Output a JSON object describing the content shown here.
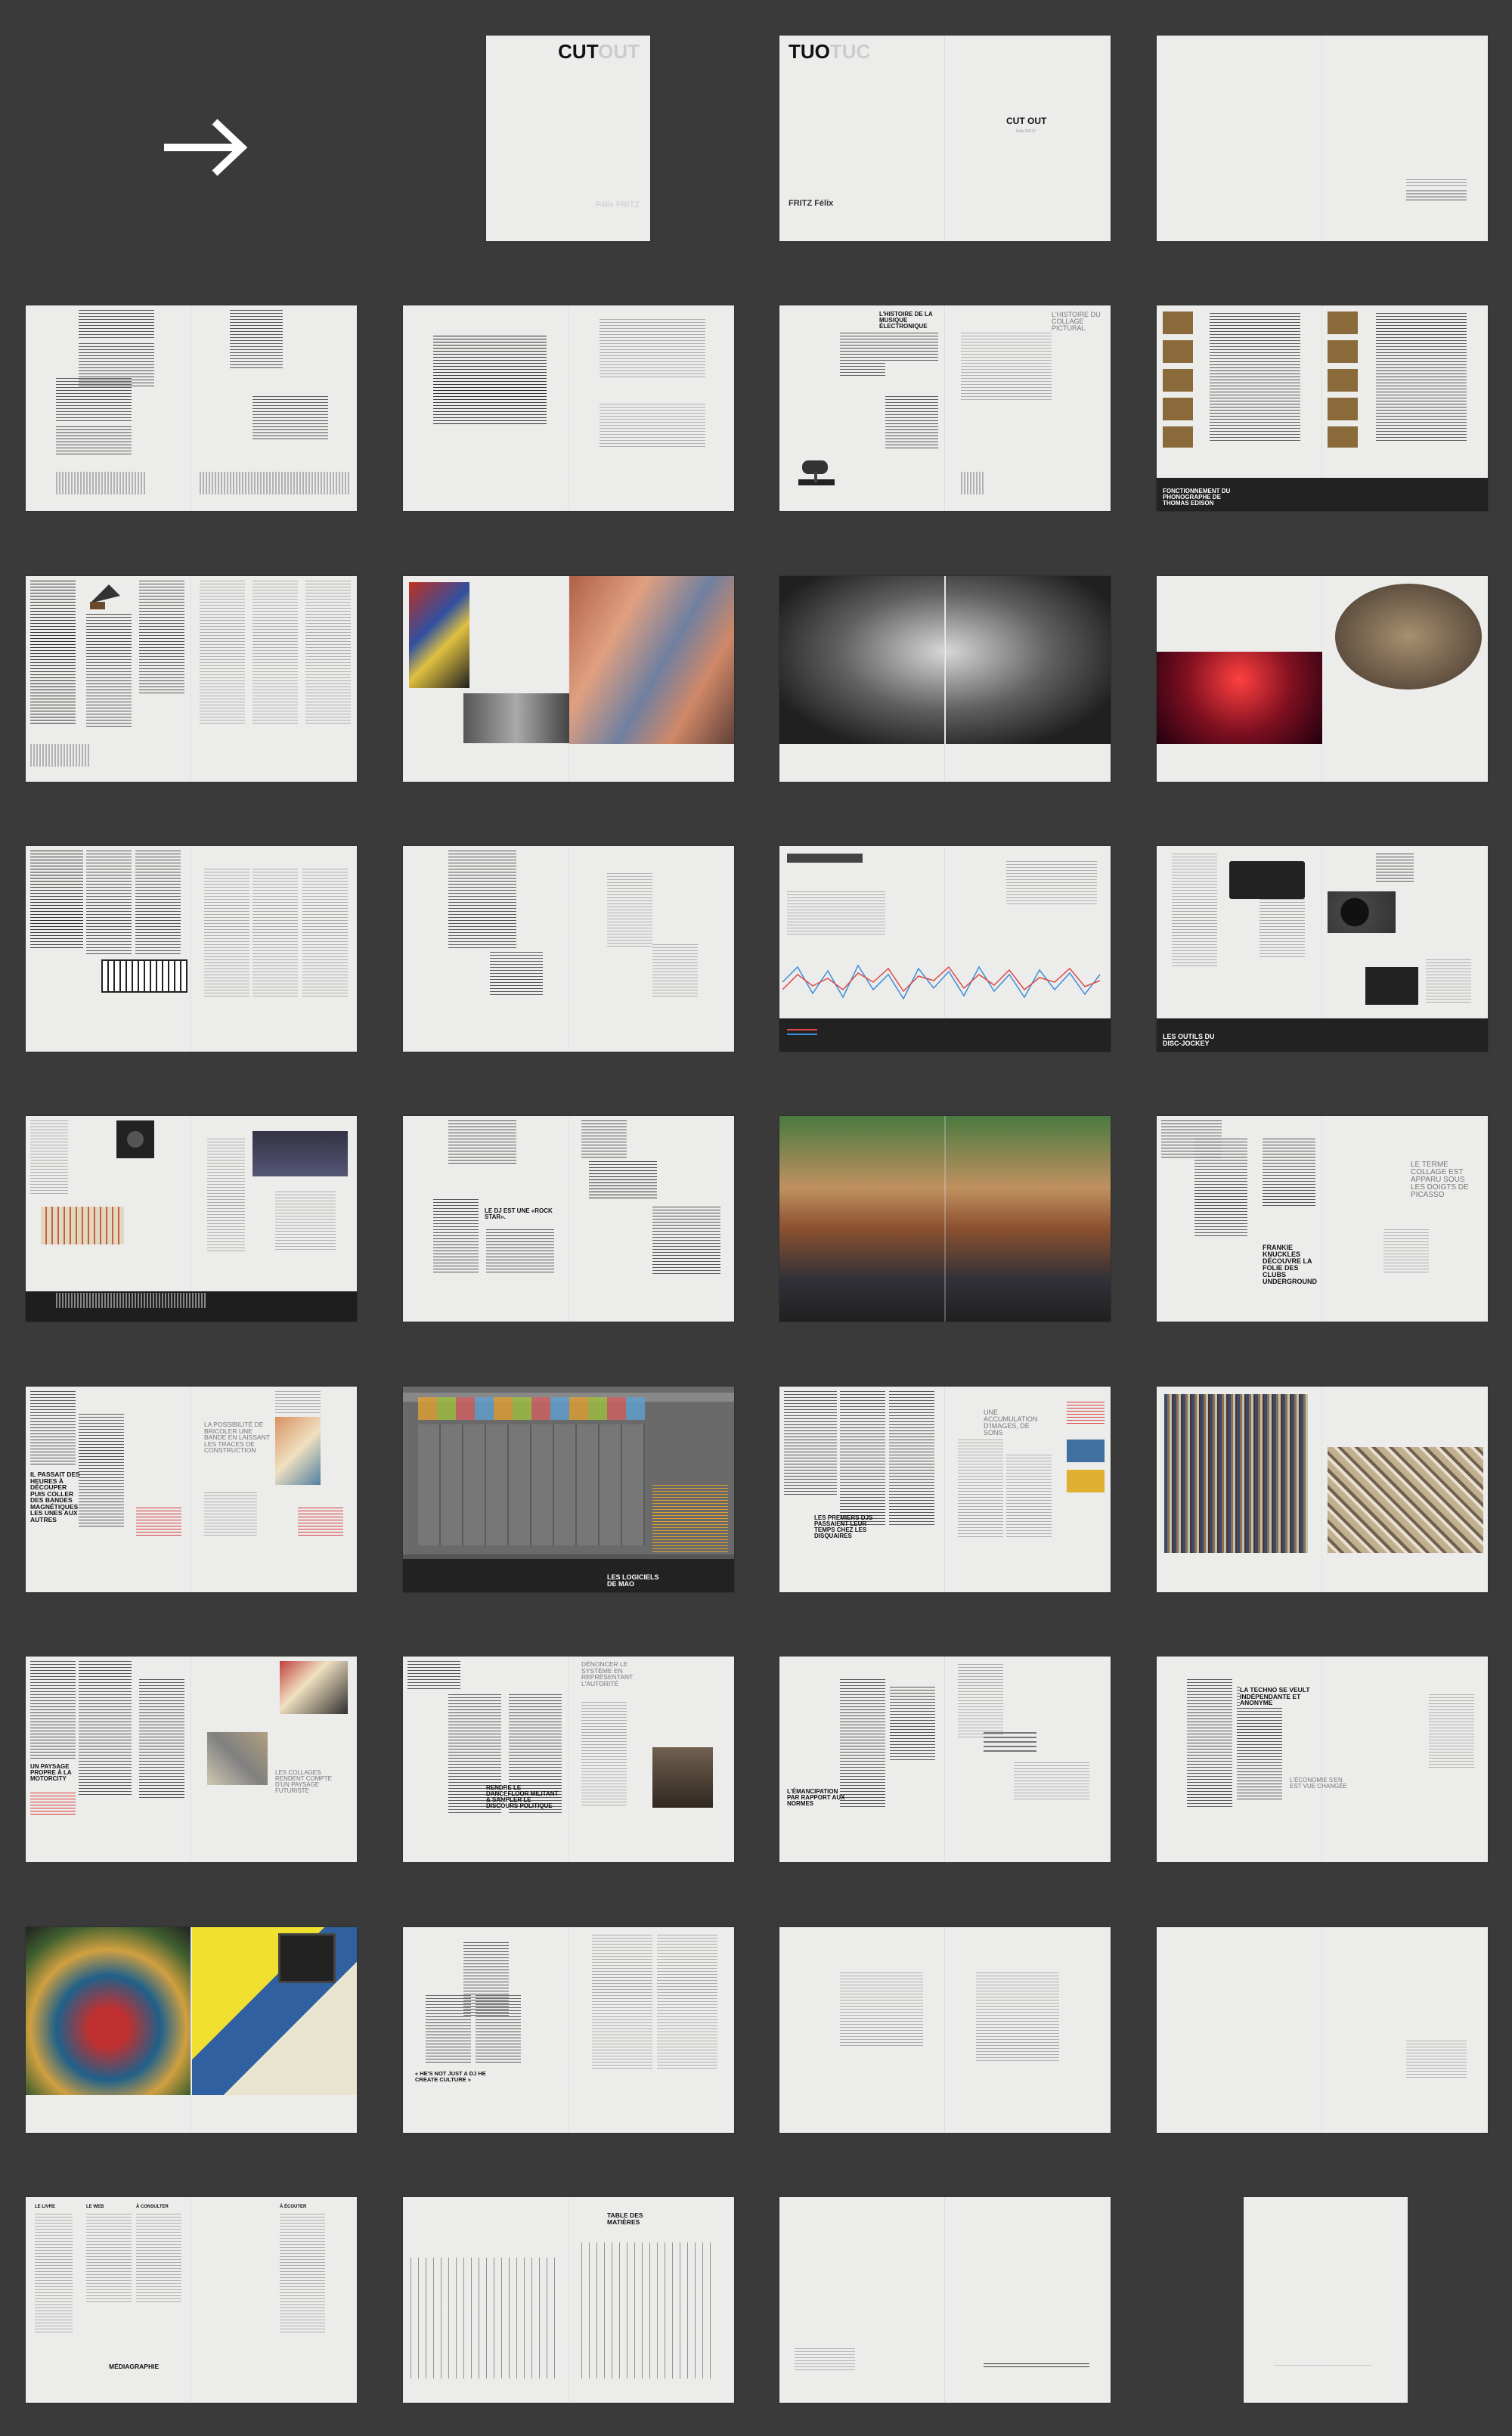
{
  "cover": {
    "title_cut": "CUT",
    "title_out": "OUT",
    "author": "Félix FRITZ"
  },
  "back_cover": {
    "title_tuo": "TUO",
    "title_tuc": "TUC",
    "author": "FRITZ Félix"
  },
  "title_page": {
    "title": "CUT OUT",
    "author": "Félix FRITZ"
  },
  "headings": {
    "h_musique": "L'HISTOIRE DE LA MUSIQUE ÉLECTRONIQUE",
    "h_collage": "L'HISTOIRE DU COLLAGE PICTURAL",
    "h_edison": "FONCTIONNEMENT DU PHONOGRAPHE DE THOMAS EDISON",
    "h_outils": "LES OUTILS DU DISC-JOCKEY",
    "h_rockstar": "LE DJ EST UNE «ROCK STAR».",
    "h_terme": "LE TERME COLLAGE EST APPARU SOUS LES DOIGTS DE PICASSO",
    "h_frankie": "FRANKIE KNUCKLES DÉCOUVRE LA FOLIE DES CLUBS UNDERGROUND",
    "h_possibilite": "LA POSSIBILITÉ DE BRICOLER UNE BANDE EN LAISSANT LES TRACES DE CONSTRUCTION",
    "h_passait": "IL PASSAIT DES HEURES À DÉCOUPER PUIS COLLER DES BANDES MAGNÉTIQUES LES UNES AUX AUTRES",
    "h_logiciels": "LES LOGICIELS DE MAO",
    "h_accumulation": "UNE ACCUMULATION D'IMAGES, DE SONS",
    "h_disquaires": "LES PREMIERS DJS PASSAIENT LEUR TEMPS CHEZ LES DISQUAIRES",
    "h_paysage": "UN PAYSAGE PROPRE À LA MOTORCITY",
    "h_collages": "LES COLLAGES RENDENT COMPTE D'UN PAYSAGE FUTURISTE",
    "h_denoncer": "DÉNONCER LE SYSTÈME EN REPRÉSENTANT L'AUTORITÉ",
    "h_rendre": "RENDRE LE DANCEFLOOR MILITANT & SAMPLER LE DISCOURS POLITIQUE",
    "h_emancipation": "L'ÉMANCIPATION PAR RAPPORT AUX NORMES",
    "h_techno": "LA TECHNO SE VEULT INDÉPENDANTE ET ANONYME",
    "h_economie": "L'ÉCONOMIE S'EN EST VUE CHANGÉE",
    "h_quote": "« HE'S NOT JUST A DJ HE CREATE CULTURE »",
    "h_mediagraphie": "MÉDIAGRAPHIE",
    "h_table": "TABLE DES MATIÈRES",
    "col_livre": "LE LIVRE",
    "col_web": "LE WEB",
    "col_consulter": "À CONSULTER",
    "col_ecouter": "À ÉCOUTER"
  },
  "colors": {
    "bg": "#3a3a3a",
    "page": "#ececeb",
    "accent_red": "#d83a3a",
    "band": "#222222",
    "ui_orange": "#e0a030"
  },
  "icons": {
    "arrow": "right-arrow-icon"
  }
}
